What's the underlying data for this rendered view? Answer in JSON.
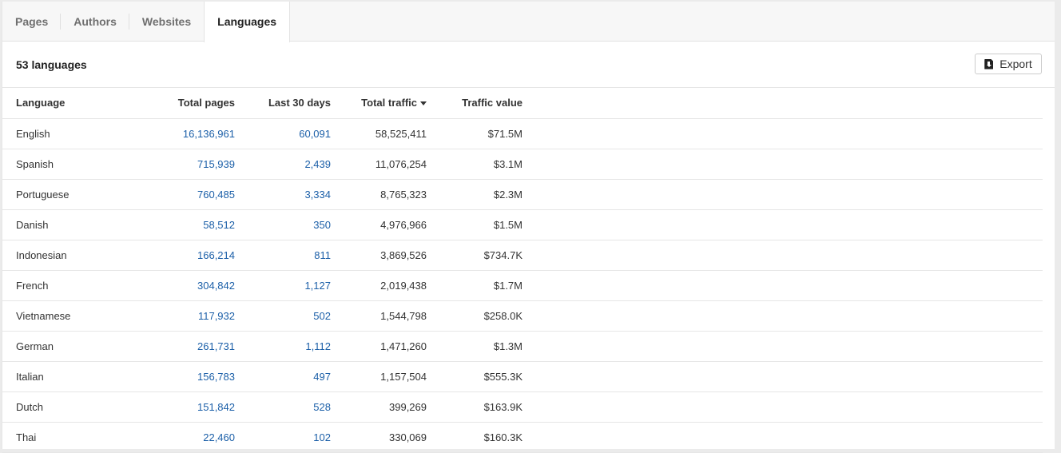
{
  "tabs": [
    {
      "label": "Pages"
    },
    {
      "label": "Authors"
    },
    {
      "label": "Websites"
    },
    {
      "label": "Languages"
    }
  ],
  "active_tab": "Languages",
  "summary": "53 languages",
  "export_label": "Export",
  "columns": [
    "Language",
    "Total pages",
    "Last 30 days",
    "Total traffic",
    "Traffic value"
  ],
  "sort": {
    "column": "Total traffic",
    "direction": "desc"
  },
  "rows": [
    [
      "English",
      "16,136,961",
      "60,091",
      "58,525,411",
      "$71.5M"
    ],
    [
      "Spanish",
      "715,939",
      "2,439",
      "11,076,254",
      "$3.1M"
    ],
    [
      "Portuguese",
      "760,485",
      "3,334",
      "8,765,323",
      "$2.3M"
    ],
    [
      "Danish",
      "58,512",
      "350",
      "4,976,966",
      "$1.5M"
    ],
    [
      "Indonesian",
      "166,214",
      "811",
      "3,869,526",
      "$734.7K"
    ],
    [
      "French",
      "304,842",
      "1,127",
      "2,019,438",
      "$1.7M"
    ],
    [
      "Vietnamese",
      "117,932",
      "502",
      "1,544,798",
      "$258.0K"
    ],
    [
      "German",
      "261,731",
      "1,112",
      "1,471,260",
      "$1.3M"
    ],
    [
      "Italian",
      "156,783",
      "497",
      "1,157,504",
      "$555.3K"
    ],
    [
      "Dutch",
      "151,842",
      "528",
      "399,269",
      "$163.9K"
    ],
    [
      "Thai",
      "22,460",
      "102",
      "330,069",
      "$160.3K"
    ]
  ]
}
